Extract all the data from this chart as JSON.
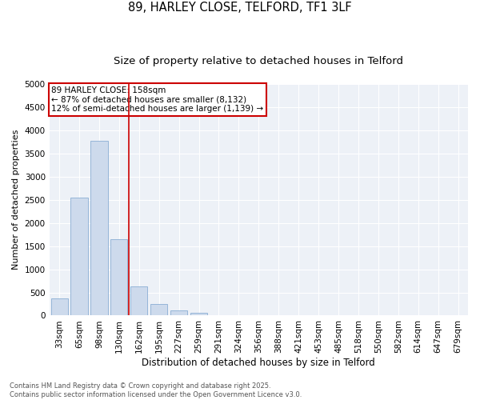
{
  "title": "89, HARLEY CLOSE, TELFORD, TF1 3LF",
  "subtitle": "Size of property relative to detached houses in Telford",
  "xlabel": "Distribution of detached houses by size in Telford",
  "ylabel": "Number of detached properties",
  "categories": [
    "33sqm",
    "65sqm",
    "98sqm",
    "130sqm",
    "162sqm",
    "195sqm",
    "227sqm",
    "259sqm",
    "291sqm",
    "324sqm",
    "356sqm",
    "388sqm",
    "421sqm",
    "453sqm",
    "485sqm",
    "518sqm",
    "550sqm",
    "582sqm",
    "614sqm",
    "647sqm",
    "679sqm"
  ],
  "values": [
    375,
    2550,
    3780,
    1650,
    625,
    245,
    110,
    65,
    0,
    0,
    0,
    0,
    0,
    0,
    0,
    0,
    0,
    0,
    0,
    0,
    0
  ],
  "bar_color": "#cddaec",
  "bar_edge_color": "#8aadd4",
  "bar_edge_width": 0.6,
  "vline_xindex": 4,
  "vline_color": "#cc0000",
  "annotation_text": "89 HARLEY CLOSE: 158sqm\n← 87% of detached houses are smaller (8,132)\n12% of semi-detached houses are larger (1,139) →",
  "annotation_box_edgecolor": "#cc0000",
  "ylim": [
    0,
    5000
  ],
  "yticks": [
    0,
    500,
    1000,
    1500,
    2000,
    2500,
    3000,
    3500,
    4000,
    4500,
    5000
  ],
  "background_color": "#edf1f7",
  "grid_color": "#ffffff",
  "footer_text": "Contains HM Land Registry data © Crown copyright and database right 2025.\nContains public sector information licensed under the Open Government Licence v3.0.",
  "title_fontsize": 10.5,
  "subtitle_fontsize": 9.5,
  "xlabel_fontsize": 8.5,
  "ylabel_fontsize": 8,
  "tick_fontsize": 7.5,
  "annotation_fontsize": 7.5,
  "footer_fontsize": 6
}
